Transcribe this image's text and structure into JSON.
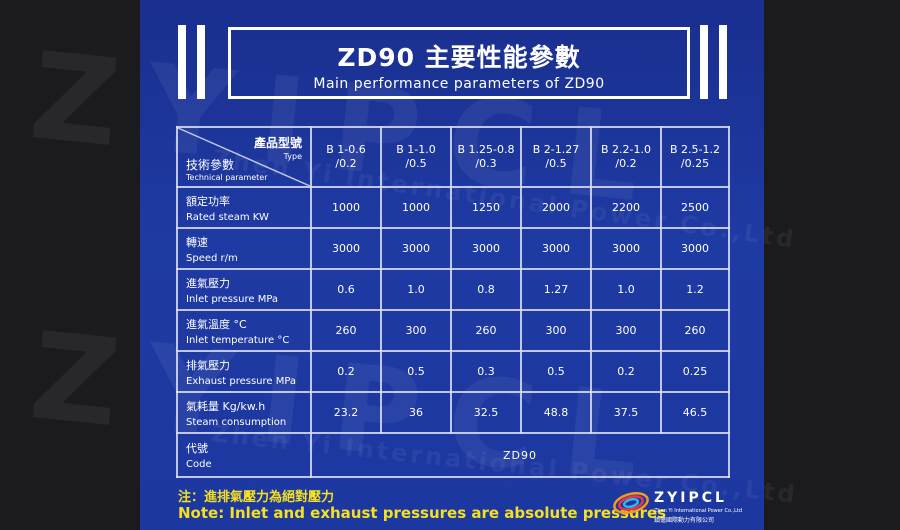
{
  "title": {
    "main": "ZD90 主要性能參數",
    "sub": "Main performance parameters of ZD90"
  },
  "watermark": {
    "brand": "ZYIPCL",
    "company": "Zhen Yi International Power Co.,Ltd"
  },
  "table": {
    "corner": {
      "model_zh": "產品型號",
      "model_en": "Type",
      "param_zh": "技術參數",
      "param_en": "Technical parameter"
    },
    "models": [
      {
        "line1": "B 1-0.6",
        "line2": "/0.2"
      },
      {
        "line1": "B 1-1.0",
        "line2": "/0.5"
      },
      {
        "line1": "B 1.25-0.8",
        "line2": "/0.3"
      },
      {
        "line1": "B 2-1.27",
        "line2": "/0.5"
      },
      {
        "line1": "B 2.2-1.0",
        "line2": "/0.2"
      },
      {
        "line1": "B 2.5-1.2",
        "line2": "/0.25"
      }
    ],
    "rows": [
      {
        "zh": "額定功率",
        "en": "Rated steam  KW",
        "values": [
          "1000",
          "1000",
          "1250",
          "2000",
          "2200",
          "2500"
        ]
      },
      {
        "zh": "轉速",
        "en": "Speed   r/m",
        "values": [
          "3000",
          "3000",
          "3000",
          "3000",
          "3000",
          "3000"
        ]
      },
      {
        "zh": "進氣壓力",
        "en": "Inlet pressure  MPa",
        "values": [
          "0.6",
          "1.0",
          "0.8",
          "1.27",
          "1.0",
          "1.2"
        ]
      },
      {
        "zh": "進氣溫度 °C",
        "en": "Inlet  temperature  °C",
        "values": [
          "260",
          "300",
          "260",
          "300",
          "300",
          "260"
        ]
      },
      {
        "zh": "排氣壓力",
        "en": "Exhaust pressure  MPa",
        "values": [
          "0.2",
          "0.5",
          "0.3",
          "0.5",
          "0.2",
          "0.25"
        ]
      },
      {
        "zh": "氣耗量 Kg/kw.h",
        "en": "Steam consumption",
        "values": [
          "23.2",
          "36",
          "32.5",
          "48.8",
          "37.5",
          "46.5"
        ]
      }
    ],
    "code": {
      "zh": "代號",
      "en": "Code",
      "value": "ZD90"
    }
  },
  "note": {
    "zh": "注：進排氣壓力為絕對壓力",
    "en": "Note: Inlet and exhaust pressures are absolute pressures"
  },
  "logo": {
    "name": "ZYIPCL",
    "sub_en": "Zhen Yi International Power Co.,Ltd",
    "sub_zh": "鎮億國際動力有限公司"
  },
  "colors": {
    "panel": "#1e3aa3",
    "page_bg": "#1b1b1d",
    "note": "#f4e020"
  }
}
